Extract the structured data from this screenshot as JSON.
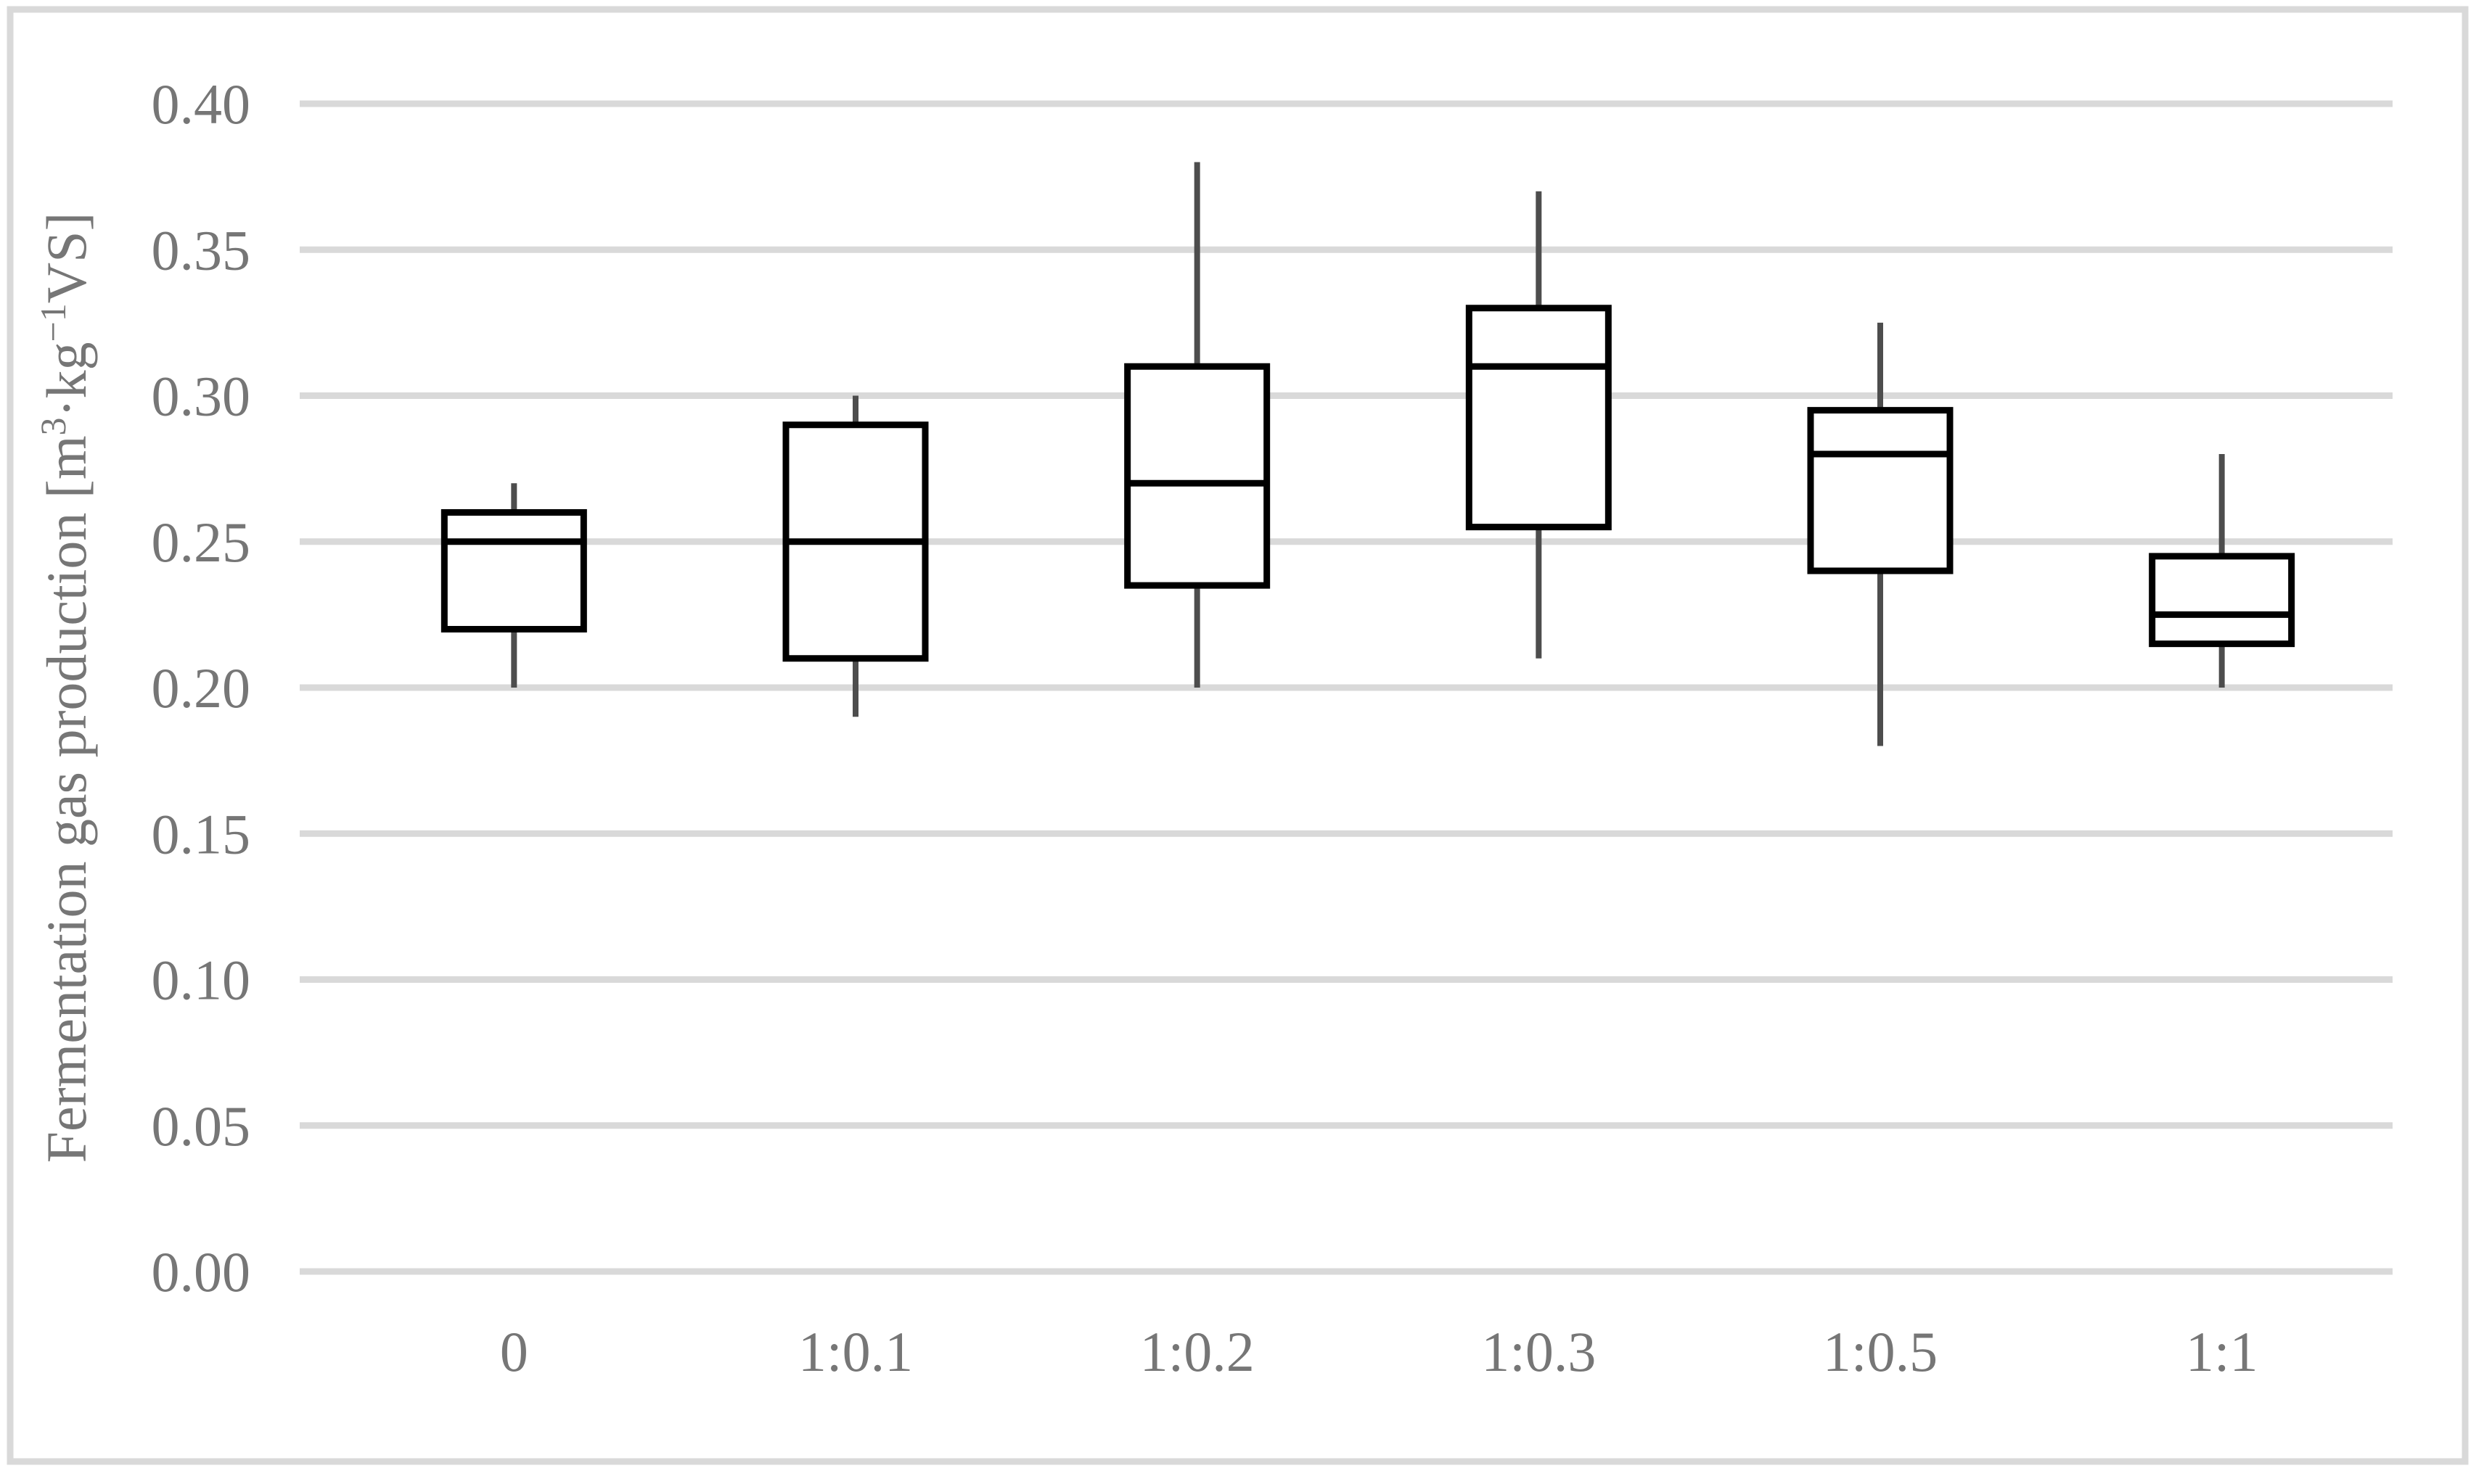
{
  "figure": {
    "background": "#ffffff",
    "border_color": "#d9d9d9"
  },
  "colors": {
    "gridline": "#d9d9d9",
    "outer_border": "#d9d9d9",
    "box_border": "#000000",
    "box_fill": "#ffffff",
    "median_line": "#000000",
    "whisker": "#4d4d4d",
    "axis_text": "#767676"
  },
  "chart_data": {
    "type": "boxplot",
    "title": "",
    "xlabel": "",
    "ylabel": "Fermentation gas production [m³·kg⁻¹VS]",
    "ylabel_parts": [
      {
        "text": "Fermentation gas production [m",
        "sup": false
      },
      {
        "text": "3",
        "sup": true
      },
      {
        "text": "·kg",
        "sup": false
      },
      {
        "text": "−1",
        "sup": true
      },
      {
        "text": "VS]",
        "sup": false
      }
    ],
    "ylim": [
      0.0,
      0.4
    ],
    "ytick_step": 0.05,
    "yticks": [
      {
        "value": 0.0,
        "label": "0.00"
      },
      {
        "value": 0.05,
        "label": "0.05"
      },
      {
        "value": 0.1,
        "label": "0.10"
      },
      {
        "value": 0.15,
        "label": "0.15"
      },
      {
        "value": 0.2,
        "label": "0.20"
      },
      {
        "value": 0.25,
        "label": "0.25"
      },
      {
        "value": 0.3,
        "label": "0.30"
      },
      {
        "value": 0.35,
        "label": "0.35"
      },
      {
        "value": 0.4,
        "label": "0.40"
      }
    ],
    "grid": "horizontal",
    "legend": "none",
    "whisker_caps": false,
    "categories": [
      "0",
      "1:0.1",
      "1:0.2",
      "1:0.3",
      "1:0.5",
      "1:1"
    ],
    "series": [
      {
        "name": "Fermentation gas production",
        "boxes": [
          {
            "category": "0",
            "low": 0.2,
            "q1": 0.22,
            "median": 0.25,
            "q3": 0.26,
            "high": 0.27
          },
          {
            "category": "1:0.1",
            "low": 0.19,
            "q1": 0.21,
            "median": 0.25,
            "q3": 0.29,
            "high": 0.3
          },
          {
            "category": "1:0.2",
            "low": 0.2,
            "q1": 0.235,
            "median": 0.27,
            "q3": 0.31,
            "high": 0.38
          },
          {
            "category": "1:0.3",
            "low": 0.21,
            "q1": 0.255,
            "median": 0.31,
            "q3": 0.33,
            "high": 0.37
          },
          {
            "category": "1:0.5",
            "low": 0.18,
            "q1": 0.24,
            "median": 0.28,
            "q3": 0.295,
            "high": 0.325
          },
          {
            "category": "1:1",
            "low": 0.2,
            "q1": 0.215,
            "median": 0.225,
            "q3": 0.245,
            "high": 0.28
          }
        ]
      }
    ]
  }
}
